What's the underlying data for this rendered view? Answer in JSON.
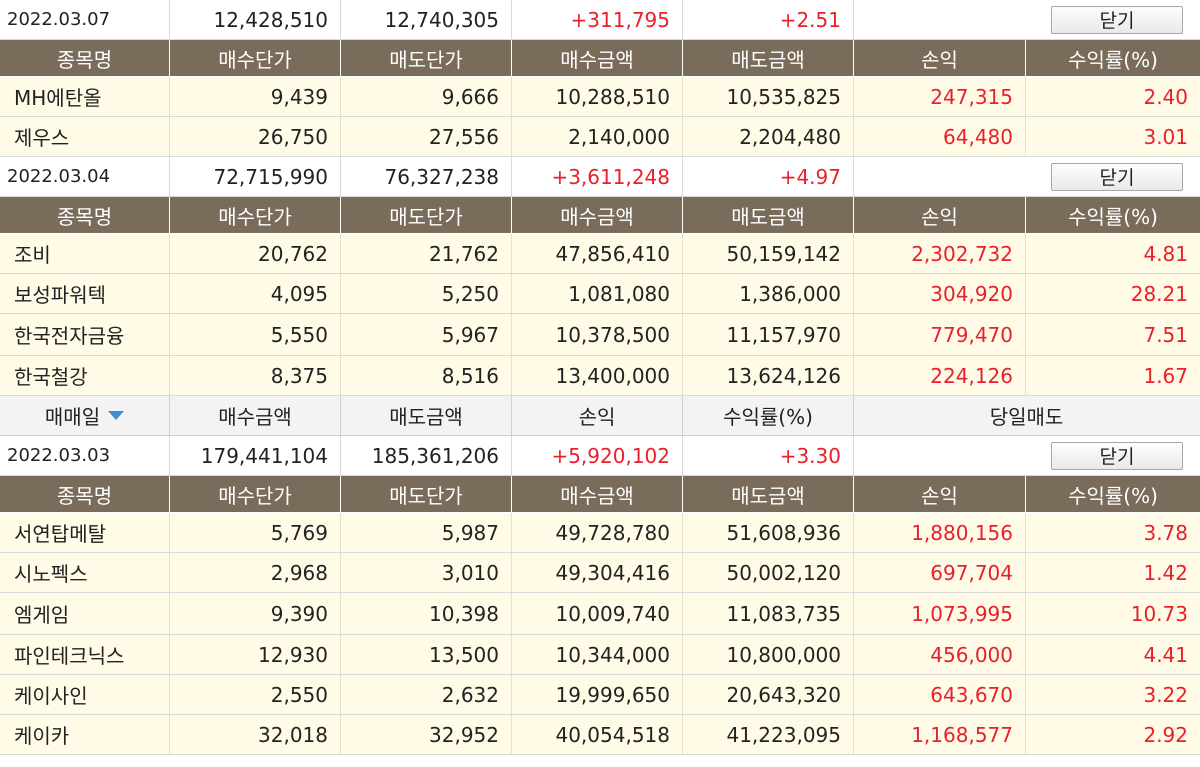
{
  "table_header": {
    "trade_date": "매매일",
    "buy_amount": "매수금액",
    "sell_amount": "매도금액",
    "profit": "손익",
    "return_rate": "수익률(%)",
    "same_day_sell": "당일매도"
  },
  "detail_columns": [
    "종목명",
    "매수단가",
    "매도단가",
    "매수금액",
    "매도금액",
    "손익",
    "수익률(%)"
  ],
  "close_label": "닫기",
  "days": [
    {
      "date": "2022.03.07",
      "buy_amount": "12,428,510",
      "sell_amount": "12,740,305",
      "profit": "+311,795",
      "rate": "+2.51",
      "stocks": [
        {
          "name": "MH에탄올",
          "buy_price": "9,439",
          "sell_price": "9,666",
          "buy_amount": "10,288,510",
          "sell_amount": "10,535,825",
          "profit": "247,315",
          "rate": "2.40"
        },
        {
          "name": "제우스",
          "buy_price": "26,750",
          "sell_price": "27,556",
          "buy_amount": "2,140,000",
          "sell_amount": "2,204,480",
          "profit": "64,480",
          "rate": "3.01"
        }
      ]
    },
    {
      "date": "2022.03.04",
      "buy_amount": "72,715,990",
      "sell_amount": "76,327,238",
      "profit": "+3,611,248",
      "rate": "+4.97",
      "stocks": [
        {
          "name": "조비",
          "buy_price": "20,762",
          "sell_price": "21,762",
          "buy_amount": "47,856,410",
          "sell_amount": "50,159,142",
          "profit": "2,302,732",
          "rate": "4.81"
        },
        {
          "name": "보성파워텍",
          "buy_price": "4,095",
          "sell_price": "5,250",
          "buy_amount": "1,081,080",
          "sell_amount": "1,386,000",
          "profit": "304,920",
          "rate": "28.21"
        },
        {
          "name": "한국전자금융",
          "buy_price": "5,550",
          "sell_price": "5,967",
          "buy_amount": "10,378,500",
          "sell_amount": "11,157,970",
          "profit": "779,470",
          "rate": "7.51"
        },
        {
          "name": "한국철강",
          "buy_price": "8,375",
          "sell_price": "8,516",
          "buy_amount": "13,400,000",
          "sell_amount": "13,624,126",
          "profit": "224,126",
          "rate": "1.67"
        }
      ]
    },
    {
      "date": "2022.03.03",
      "buy_amount": "179,441,104",
      "sell_amount": "185,361,206",
      "profit": "+5,920,102",
      "rate": "+3.30",
      "stocks": [
        {
          "name": "서연탑메탈",
          "buy_price": "5,769",
          "sell_price": "5,987",
          "buy_amount": "49,728,780",
          "sell_amount": "51,608,936",
          "profit": "1,880,156",
          "rate": "3.78"
        },
        {
          "name": "시노펙스",
          "buy_price": "2,968",
          "sell_price": "3,010",
          "buy_amount": "49,304,416",
          "sell_amount": "50,002,120",
          "profit": "697,704",
          "rate": "1.42"
        },
        {
          "name": "엠게임",
          "buy_price": "9,390",
          "sell_price": "10,398",
          "buy_amount": "10,009,740",
          "sell_amount": "11,083,735",
          "profit": "1,073,995",
          "rate": "10.73"
        },
        {
          "name": "파인테크닉스",
          "buy_price": "12,930",
          "sell_price": "13,500",
          "buy_amount": "10,344,000",
          "sell_amount": "10,800,000",
          "profit": "456,000",
          "rate": "4.41"
        },
        {
          "name": "케이사인",
          "buy_price": "2,550",
          "sell_price": "2,632",
          "buy_amount": "19,999,650",
          "sell_amount": "20,643,320",
          "profit": "643,670",
          "rate": "3.22"
        },
        {
          "name": "케이카",
          "buy_price": "32,018",
          "sell_price": "32,952",
          "buy_amount": "40,054,518",
          "sell_amount": "41,223,095",
          "profit": "1,168,577",
          "rate": "2.92"
        }
      ]
    }
  ],
  "colors": {
    "header_bg": "#7a6c5a",
    "row_bg": "#fffbe6",
    "positive": "#e8202c",
    "sort_arrow": "#3b8fd8"
  },
  "icons": {
    "sort": "sort-desc-icon"
  }
}
